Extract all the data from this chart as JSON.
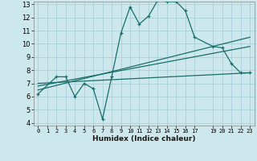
{
  "xlabel": "Humidex (Indice chaleur)",
  "bg_color": "#cce8ec",
  "grid_color": "#aad0d8",
  "line_color": "#1a6e6a",
  "xlim": [
    -0.5,
    23.5
  ],
  "ylim": [
    3.8,
    13.2
  ],
  "xtick_positions": [
    0,
    1,
    2,
    3,
    4,
    5,
    6,
    7,
    8,
    9,
    10,
    11,
    12,
    13,
    14,
    15,
    16,
    17,
    19,
    20,
    21,
    22,
    23
  ],
  "xtick_labels": [
    "0",
    "1",
    "2",
    "3",
    "4",
    "5",
    "6",
    "7",
    "8",
    "9",
    "10",
    "11",
    "12",
    "13",
    "14",
    "15",
    "16",
    "17",
    "19",
    "20",
    "21",
    "22",
    "23"
  ],
  "ytick_positions": [
    4,
    5,
    6,
    7,
    8,
    9,
    10,
    11,
    12,
    13
  ],
  "ytick_labels": [
    "4",
    "5",
    "6",
    "7",
    "8",
    "9",
    "10",
    "11",
    "12",
    "13"
  ],
  "series": [
    {
      "x": [
        0,
        2,
        3,
        4,
        5,
        6,
        7,
        8,
        9,
        10,
        11,
        12,
        13,
        14,
        15,
        16,
        17,
        19,
        20,
        21,
        22,
        23
      ],
      "y": [
        6.2,
        7.5,
        7.5,
        6.0,
        7.0,
        6.6,
        4.3,
        7.5,
        10.8,
        12.8,
        11.5,
        12.1,
        13.3,
        13.2,
        13.2,
        12.5,
        10.5,
        9.8,
        9.7,
        8.5,
        7.8,
        7.8
      ],
      "marker": true
    },
    {
      "x": [
        0,
        23
      ],
      "y": [
        6.5,
        10.5
      ],
      "marker": false
    },
    {
      "x": [
        0,
        23
      ],
      "y": [
        6.8,
        9.8
      ],
      "marker": false
    },
    {
      "x": [
        0,
        23
      ],
      "y": [
        7.0,
        7.8
      ],
      "marker": false
    }
  ]
}
